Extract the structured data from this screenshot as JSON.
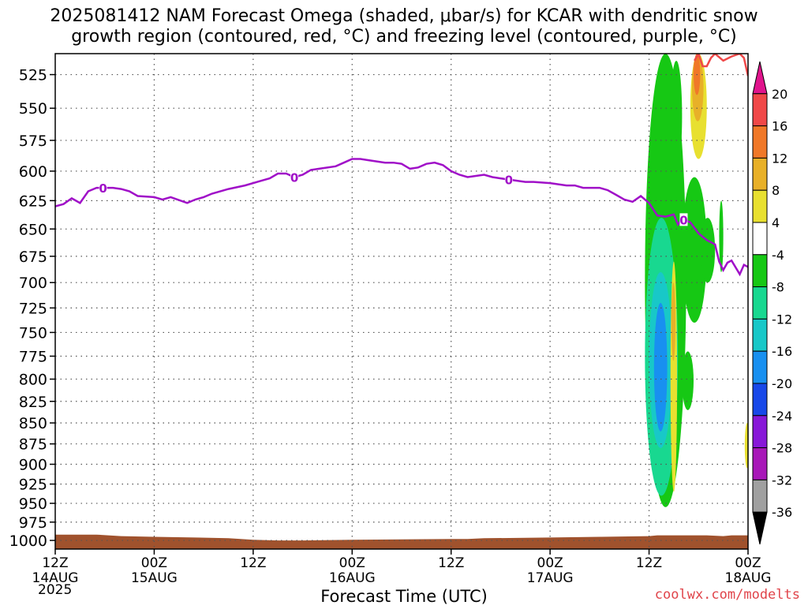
{
  "title_line1": "2025081412 NAM Forecast Omega (shaded, μbar/s) for KCAR with dendritic snow",
  "title_line2": "growth region (contoured, red, °C) and freezing level (contoured, purple, °C)",
  "credit": "coolwx.com/modelts",
  "chart_data": {
    "type": "heatmap",
    "title": "2025081412 NAM Forecast Omega (shaded, μbar/s) for KCAR with dendritic snow growth region (contoured, red, °C) and freezing level (contoured, purple, °C)",
    "xlabel": "Forecast Time (UTC)",
    "year_label": "2025",
    "ylabel": "",
    "x_range_hours": [
      0,
      84
    ],
    "y_range_hpa": [
      510,
      1012
    ],
    "y_axis": "pressure (inverted)",
    "grid": true,
    "x_ticks": [
      {
        "hour": 0,
        "line1": "12Z",
        "line2": "14AUG"
      },
      {
        "hour": 12,
        "line1": "00Z",
        "line2": "15AUG"
      },
      {
        "hour": 24,
        "line1": "12Z",
        "line2": ""
      },
      {
        "hour": 36,
        "line1": "00Z",
        "line2": "16AUG"
      },
      {
        "hour": 48,
        "line1": "12Z",
        "line2": ""
      },
      {
        "hour": 60,
        "line1": "00Z",
        "line2": "17AUG"
      },
      {
        "hour": 72,
        "line1": "12Z",
        "line2": ""
      },
      {
        "hour": 84,
        "line1": "00Z",
        "line2": "18AUG"
      }
    ],
    "y_ticks": [
      "525",
      "550",
      "575",
      "600",
      "625",
      "650",
      "675",
      "700",
      "725",
      "750",
      "775",
      "800",
      "825",
      "850",
      "875",
      "900",
      "925",
      "950",
      "975",
      "1000"
    ],
    "y_tick_values": [
      525,
      550,
      575,
      600,
      625,
      650,
      675,
      700,
      725,
      750,
      775,
      800,
      825,
      850,
      875,
      900,
      925,
      950,
      975,
      1000
    ],
    "colorbar": {
      "labels": [
        "20",
        "16",
        "12",
        "8",
        "4",
        "-4",
        "-8",
        "-12",
        "-16",
        "-20",
        "-24",
        "-28",
        "-32",
        "-36"
      ],
      "bins": [
        {
          "color": "#e0148c"
        },
        {
          "color": "#f04848"
        },
        {
          "color": "#f07828"
        },
        {
          "color": "#e8b028"
        },
        {
          "color": "#e8e030"
        },
        {
          "color": "#ffffff"
        },
        {
          "color": "#16c814"
        },
        {
          "color": "#18d890"
        },
        {
          "color": "#18c8c8"
        },
        {
          "color": "#1890f0"
        },
        {
          "color": "#1848e8"
        },
        {
          "color": "#8818d8"
        },
        {
          "color": "#a818b8"
        },
        {
          "color": "#a0a0a0"
        },
        {
          "color": "#000000"
        }
      ]
    },
    "freezing_level": {
      "color": "#a010c8",
      "label": "0",
      "label_hours": [
        5.8,
        29,
        55,
        76.2
      ],
      "points": [
        [
          0,
          630
        ],
        [
          1,
          628
        ],
        [
          2,
          623
        ],
        [
          3,
          627
        ],
        [
          4,
          617
        ],
        [
          5,
          614
        ],
        [
          6,
          614
        ],
        [
          7,
          614
        ],
        [
          8,
          615
        ],
        [
          9,
          617
        ],
        [
          10,
          621
        ],
        [
          12,
          622
        ],
        [
          13,
          624
        ],
        [
          14,
          622
        ],
        [
          16,
          627
        ],
        [
          17,
          624
        ],
        [
          18,
          622
        ],
        [
          19,
          619
        ],
        [
          21,
          615
        ],
        [
          23,
          612
        ],
        [
          25,
          608
        ],
        [
          26,
          606
        ],
        [
          27,
          602
        ],
        [
          28,
          602
        ],
        [
          29,
          605
        ],
        [
          30,
          603
        ],
        [
          31,
          599
        ],
        [
          32,
          598
        ],
        [
          34,
          596
        ],
        [
          35,
          593
        ],
        [
          36,
          590
        ],
        [
          37,
          590
        ],
        [
          38,
          591
        ],
        [
          40,
          593
        ],
        [
          41,
          593
        ],
        [
          42,
          594
        ],
        [
          43,
          598
        ],
        [
          44,
          597
        ],
        [
          45,
          594
        ],
        [
          46,
          593
        ],
        [
          47,
          595
        ],
        [
          48,
          600
        ],
        [
          49,
          603
        ],
        [
          50,
          605
        ],
        [
          51,
          604
        ],
        [
          52,
          603
        ],
        [
          53,
          605
        ],
        [
          54,
          606
        ],
        [
          56,
          608
        ],
        [
          57,
          609
        ],
        [
          58,
          609
        ],
        [
          60,
          610
        ],
        [
          61,
          611
        ],
        [
          62,
          612
        ],
        [
          63,
          612
        ],
        [
          64,
          614
        ],
        [
          65,
          614
        ],
        [
          66,
          614
        ],
        [
          67,
          616
        ],
        [
          68,
          620
        ],
        [
          69,
          624
        ],
        [
          70,
          626
        ],
        [
          71,
          621
        ],
        [
          72,
          627
        ],
        [
          73,
          638
        ],
        [
          74,
          639
        ],
        [
          75,
          637
        ],
        [
          75.5,
          646
        ],
        [
          76,
          641
        ],
        [
          77,
          644
        ],
        [
          78,
          654
        ],
        [
          79,
          660
        ],
        [
          80,
          664
        ],
        [
          80.5,
          680
        ],
        [
          81,
          688
        ],
        [
          81.5,
          681
        ],
        [
          82,
          679
        ],
        [
          83,
          692
        ],
        [
          83.5,
          683
        ],
        [
          84,
          685
        ]
      ]
    },
    "dendritic_contour": {
      "color": "#f04848",
      "points": [
        [
          77.5,
          515
        ],
        [
          78,
          510
        ],
        [
          78.5,
          519
        ],
        [
          79,
          519
        ],
        [
          79.5,
          513
        ],
        [
          80,
          510
        ],
        [
          81,
          515
        ],
        [
          82,
          512
        ],
        [
          83,
          510
        ],
        [
          83.5,
          513
        ],
        [
          84,
          526
        ]
      ]
    },
    "surface_pressure": {
      "color": "#a0522d",
      "points": [
        [
          0,
          992
        ],
        [
          5,
          992
        ],
        [
          8,
          994
        ],
        [
          12,
          995
        ],
        [
          17,
          996
        ],
        [
          21,
          997
        ],
        [
          24,
          999
        ],
        [
          27,
          1000
        ],
        [
          30,
          1000
        ],
        [
          36,
          999
        ],
        [
          48,
          998
        ],
        [
          50,
          998
        ],
        [
          52,
          997
        ],
        [
          60,
          996
        ],
        [
          66,
          995
        ],
        [
          72,
          994
        ],
        [
          73,
          993
        ],
        [
          79,
          993
        ],
        [
          81,
          994
        ],
        [
          82,
          993
        ],
        [
          84,
          993
        ]
      ]
    },
    "omega_shading": [
      {
        "value_bin": "-4 to -8",
        "color": "#16c814",
        "hours": [
          71.5,
          76.5
        ],
        "hpa": [
          510,
          955
        ]
      },
      {
        "value_bin": "-8 to -12",
        "color": "#18d890",
        "hours": [
          71.5,
          75.5
        ],
        "hpa": [
          640,
          940
        ]
      },
      {
        "value_bin": "-12 to -16",
        "color": "#18c8c8",
        "hours": [
          72,
          74.8
        ],
        "hpa": [
          690,
          880
        ]
      },
      {
        "value_bin": "-16 to -20",
        "color": "#1890f0",
        "hours": [
          72.6,
          74.2
        ],
        "hpa": [
          720,
          860
        ]
      },
      {
        "value_bin": "4 to 8",
        "color": "#e8e030",
        "hours": [
          74.6,
          75.4
        ],
        "hpa": [
          680,
          935
        ]
      },
      {
        "value_bin": "8 to 12",
        "color": "#e8b028",
        "hours": [
          74.7,
          75.2
        ],
        "hpa": [
          700,
          780
        ]
      },
      {
        "value_bin": "-4 to -8",
        "color": "#16c814",
        "hours": [
          74.6,
          76
        ],
        "hpa": [
          515,
          600
        ]
      },
      {
        "value_bin": "4 to 8",
        "color": "#e8e030",
        "hours": [
          77,
          79
        ],
        "hpa": [
          510,
          590
        ]
      },
      {
        "value_bin": "8 to 12",
        "color": "#e8b028",
        "hours": [
          77.2,
          78.6
        ],
        "hpa": [
          510,
          560
        ]
      },
      {
        "value_bin": "12 to 16",
        "color": "#f07828",
        "hours": [
          77.4,
          78.2
        ],
        "hpa": [
          510,
          540
        ]
      },
      {
        "value_bin": "-4 to -8",
        "color": "#16c814",
        "hours": [
          76,
          79
        ],
        "hpa": [
          605,
          740
        ]
      },
      {
        "value_bin": "-4 to -8",
        "color": "#16c814",
        "hours": [
          80.5,
          81
        ],
        "hpa": [
          625,
          690
        ]
      },
      {
        "value_bin": "-4 to -8",
        "color": "#16c814",
        "hours": [
          78.2,
          80
        ],
        "hpa": [
          640,
          700
        ]
      },
      {
        "value_bin": "-4 to -8",
        "color": "#16c814",
        "hours": [
          76,
          77.4
        ],
        "hpa": [
          770,
          835
        ]
      },
      {
        "value_bin": "4 to 8",
        "color": "#e8e030",
        "hours": [
          83.6,
          84.2
        ],
        "hpa": [
          850,
          905
        ]
      }
    ]
  }
}
